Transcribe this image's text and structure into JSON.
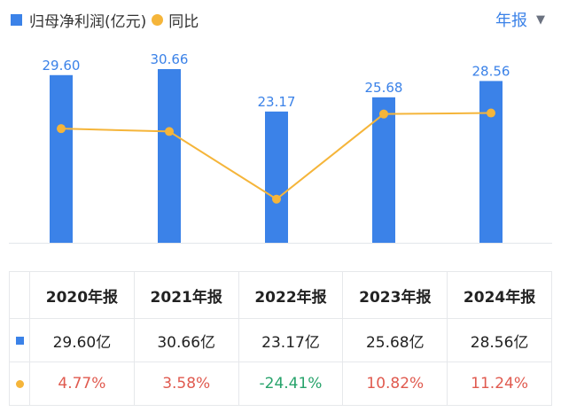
{
  "legend": {
    "bar_label": "归母净利润(亿元)",
    "line_label": "同比"
  },
  "period_selector": {
    "label": "年报",
    "caret": "▼"
  },
  "colors": {
    "bar": "#3b82e8",
    "line": "#f5b53a",
    "positive": "#e05a4f",
    "negative": "#27a36b"
  },
  "chart_data": {
    "type": "bar",
    "categories": [
      "2020年报",
      "2021年报",
      "2022年报",
      "2023年报",
      "2024年报"
    ],
    "series": [
      {
        "name": "归母净利润(亿元)",
        "type": "bar",
        "values": [
          29.6,
          30.66,
          23.17,
          25.68,
          28.56
        ],
        "labels": [
          "29.60",
          "30.66",
          "23.17",
          "25.68",
          "28.56"
        ]
      },
      {
        "name": "同比",
        "type": "line",
        "values": [
          4.77,
          3.58,
          -24.41,
          10.82,
          11.24
        ]
      }
    ],
    "ylim": [
      0,
      30.66
    ],
    "grid": false
  },
  "table": {
    "headers": [
      "2020年报",
      "2021年报",
      "2022年报",
      "2023年报",
      "2024年报"
    ],
    "profit_row": [
      "29.60亿",
      "30.66亿",
      "23.17亿",
      "25.68亿",
      "28.56亿"
    ],
    "yoy_row": [
      "4.77%",
      "3.58%",
      "-24.41%",
      "10.82%",
      "11.24%"
    ]
  }
}
